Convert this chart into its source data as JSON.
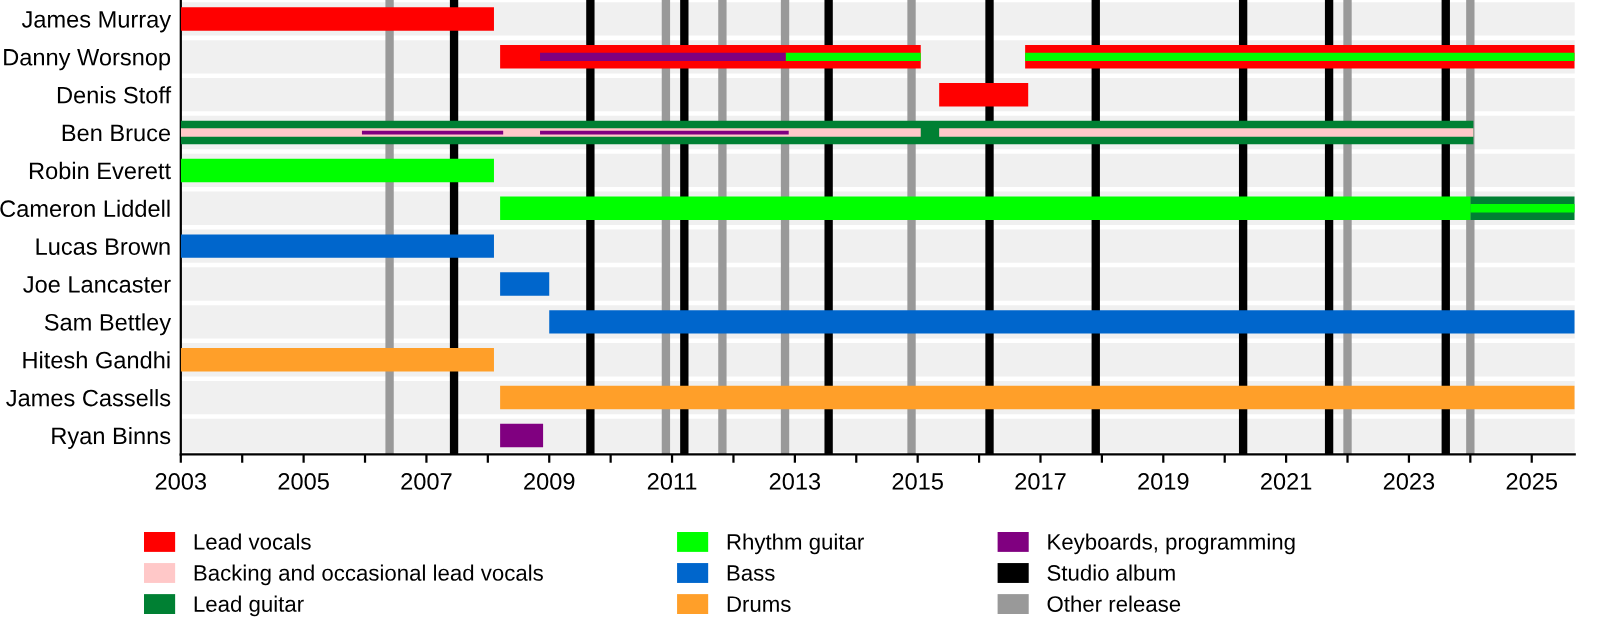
{
  "chart_data": {
    "type": "bar",
    "orientation": "horizontal",
    "categories": [
      "James Murray",
      "Danny Worsnop",
      "Denis Stoff",
      "Ben Bruce",
      "Robin Everett",
      "Cameron Liddell",
      "Lucas Brown",
      "Joe Lancaster",
      "Sam Bettley",
      "Hitesh Gandhi",
      "James Cassells",
      "Ryan Binns"
    ],
    "series": [
      {
        "name": "Lead vocals",
        "color": "#ff0000",
        "base": [
          2003,
          2008.2,
          2015.35,
          null,
          null,
          null,
          null,
          null,
          null,
          null,
          null,
          null
        ],
        "values": [
          5.1,
          6.85,
          1.45,
          null,
          null,
          null,
          null,
          null,
          null,
          null,
          null,
          null
        ]
      },
      {
        "name": "Backing and occasional lead vocals",
        "color": "#ffc8c8",
        "base": [
          null,
          null,
          null,
          2003,
          null,
          null,
          null,
          null,
          null,
          null,
          null,
          null
        ],
        "values": [
          null,
          null,
          null,
          12.05,
          null,
          null,
          null,
          null,
          null,
          null,
          null,
          null
        ]
      },
      {
        "name": "Lead guitar",
        "color": "#008033",
        "base": [
          null,
          null,
          null,
          2003,
          null,
          2024.0,
          null,
          null,
          null,
          null,
          null,
          null
        ],
        "values": [
          null,
          null,
          null,
          21.05,
          null,
          1.7,
          null,
          null,
          null,
          null,
          null,
          null
        ]
      },
      {
        "name": "Rhythm guitar",
        "color": "#00ff00",
        "base": [
          null,
          2012.85,
          null,
          null,
          2003,
          2008.2,
          null,
          null,
          null,
          null,
          null,
          null
        ],
        "values": [
          null,
          2.2,
          null,
          null,
          5.1,
          15.8,
          null,
          null,
          null,
          null,
          null,
          null
        ]
      },
      {
        "name": "Bass",
        "color": "#0066cc",
        "base": [
          null,
          null,
          null,
          null,
          null,
          null,
          2003,
          2008.2,
          2009.0,
          null,
          null,
          null
        ],
        "values": [
          null,
          null,
          null,
          null,
          null,
          null,
          5.1,
          0.8,
          16.7,
          null,
          null,
          null
        ]
      },
      {
        "name": "Drums",
        "color": "#ff9f29",
        "base": [
          null,
          null,
          null,
          null,
          null,
          null,
          null,
          null,
          null,
          2003,
          2008.2,
          null
        ],
        "values": [
          null,
          null,
          null,
          null,
          null,
          null,
          null,
          null,
          null,
          5.1,
          17.5,
          null
        ]
      },
      {
        "name": "Keyboards, programming",
        "color": "#800080",
        "base": [
          null,
          2008.85,
          null,
          2005.95,
          null,
          null,
          null,
          null,
          null,
          null,
          null,
          2008.2
        ],
        "values": [
          null,
          4.0,
          null,
          2.3,
          null,
          null,
          null,
          null,
          null,
          null,
          null,
          0.7
        ]
      },
      {
        "color": "#ff0000",
        "base": [
          null,
          2016.75,
          null,
          null,
          null,
          null,
          null,
          null,
          null,
          null,
          null,
          null
        ],
        "values": [
          null,
          8.95,
          null,
          null,
          null,
          null,
          null,
          null,
          null,
          null,
          null,
          null
        ]
      },
      {
        "color": "#00ff00",
        "base": [
          null,
          2016.75,
          null,
          null,
          null,
          2024.0,
          null,
          null,
          null,
          null,
          null,
          null
        ],
        "values": [
          null,
          8.95,
          null,
          null,
          null,
          1.7,
          null,
          null,
          null,
          null,
          null,
          null
        ]
      },
      {
        "color": "#ffc8c8",
        "base": [
          null,
          null,
          null,
          2015.35,
          null,
          null,
          null,
          null,
          null,
          null,
          null,
          null
        ],
        "values": [
          null,
          null,
          null,
          8.7,
          null,
          null,
          null,
          null,
          null,
          null,
          null,
          null
        ]
      },
      {
        "color": "#800080",
        "base": [
          null,
          null,
          null,
          2008.85,
          null,
          null,
          null,
          null,
          null,
          null,
          null,
          null
        ],
        "values": [
          null,
          null,
          null,
          4.05,
          null,
          null,
          null,
          null,
          null,
          null,
          null,
          null
        ]
      }
    ],
    "xlim": [
      2003,
      2025.7
    ],
    "xticks": [
      2003,
      {
        "value": 2004,
        "label": null
      },
      2005,
      {
        "value": 2006,
        "label": null
      },
      2007,
      {
        "value": 2008,
        "label": null
      },
      2009,
      {
        "value": 2010,
        "label": null
      },
      2011,
      {
        "value": 2012,
        "label": null
      },
      2013,
      {
        "value": 2014,
        "label": null
      },
      2015,
      {
        "value": 2016,
        "label": null
      },
      2017,
      {
        "value": 2018,
        "label": null
      },
      2019,
      {
        "value": 2020,
        "label": null
      },
      2021,
      {
        "value": 2022,
        "label": null
      },
      2023,
      {
        "value": 2024,
        "label": null
      },
      2025
    ],
    "ref_lines": [
      {
        "axis": "x",
        "value": 2007.45,
        "label": "Studio album",
        "color": "#000000"
      },
      {
        "axis": "x",
        "value": 2009.67,
        "color": "#000000"
      },
      {
        "axis": "x",
        "value": 2011.2,
        "color": "#000000"
      },
      {
        "axis": "x",
        "value": 2013.55,
        "color": "#000000"
      },
      {
        "axis": "x",
        "value": 2016.17,
        "color": "#000000"
      },
      {
        "axis": "x",
        "value": 2017.9,
        "color": "#000000"
      },
      {
        "axis": "x",
        "value": 2020.3,
        "color": "#000000"
      },
      {
        "axis": "x",
        "value": 2021.7,
        "color": "#000000"
      },
      {
        "axis": "x",
        "value": 2023.6,
        "color": "#000000"
      },
      {
        "axis": "x",
        "value": 2006.4,
        "label": "Other release",
        "color": "#999999"
      },
      {
        "axis": "x",
        "value": 2010.9,
        "color": "#999999"
      },
      {
        "axis": "x",
        "value": 2011.82,
        "color": "#999999"
      },
      {
        "axis": "x",
        "value": 2012.84,
        "color": "#999999"
      },
      {
        "axis": "x",
        "value": 2014.9,
        "color": "#999999"
      },
      {
        "axis": "x",
        "value": 2022.0,
        "color": "#999999"
      },
      {
        "axis": "x",
        "value": 2024.0,
        "color": "#999999"
      }
    ],
    "grid": "y",
    "legend": "bottom"
  }
}
